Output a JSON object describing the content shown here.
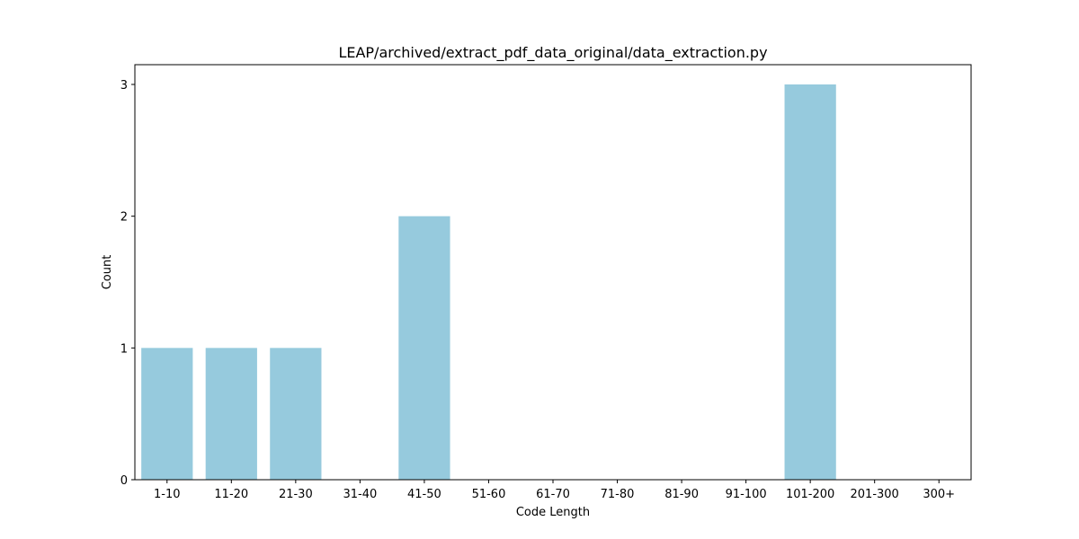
{
  "chart_data": {
    "type": "bar",
    "title": "LEAP/archived/extract_pdf_data_original/data_extraction.py",
    "xlabel": "Code Length",
    "ylabel": "Count",
    "categories": [
      "1-10",
      "11-20",
      "21-30",
      "31-40",
      "41-50",
      "51-60",
      "61-70",
      "71-80",
      "81-90",
      "91-100",
      "101-200",
      "201-300",
      "300+"
    ],
    "values": [
      1,
      1,
      1,
      0,
      2,
      0,
      0,
      0,
      0,
      0,
      3,
      0,
      0
    ],
    "yticks": [
      0,
      1,
      2,
      3
    ],
    "ylim": [
      0,
      3.15
    ],
    "grid": false,
    "bar_color": "#96cadd"
  }
}
